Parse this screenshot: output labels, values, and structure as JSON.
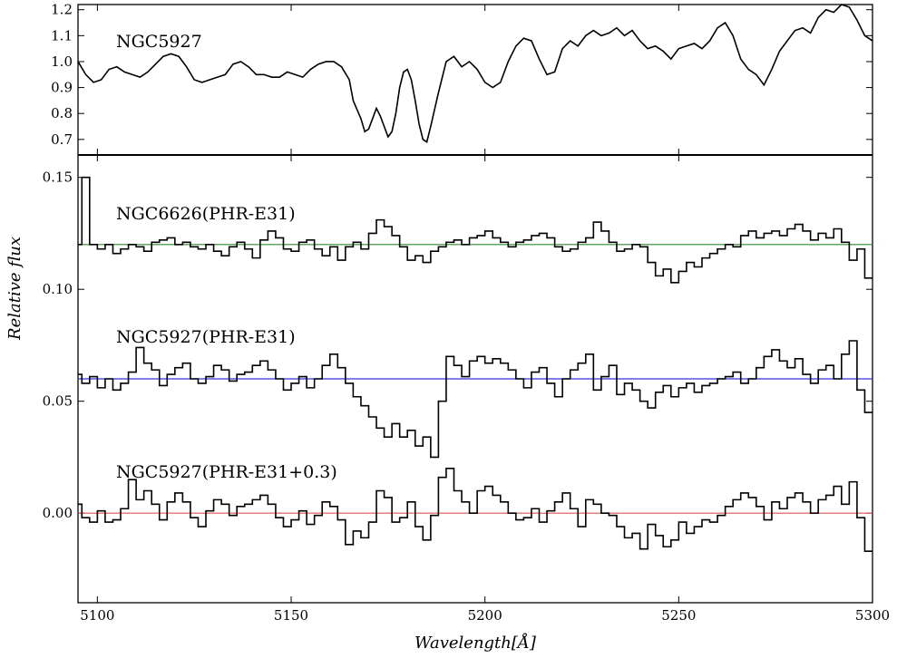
{
  "chart_data": [
    {
      "type": "line",
      "panel": "top",
      "label": "NGC5927",
      "xlim": [
        5095,
        5300
      ],
      "ylim": [
        0.64,
        1.22
      ],
      "yticks": [
        0.7,
        0.8,
        0.9,
        1.0,
        1.1,
        1.2
      ],
      "ytick_labels": [
        "0.7",
        "0.8",
        "0.9",
        "1.0",
        "1.1",
        "1.2"
      ],
      "series": [
        {
          "color": "#000000",
          "x": [
            5095,
            5097,
            5099,
            5101,
            5103,
            5105,
            5107,
            5109,
            5111,
            5113,
            5115,
            5117,
            5119,
            5121,
            5123,
            5125,
            5127,
            5129,
            5131,
            5133,
            5135,
            5137,
            5139,
            5141,
            5143,
            5145,
            5147,
            5149,
            5151,
            5153,
            5155,
            5157,
            5159,
            5161,
            5163,
            5165,
            5166,
            5168,
            5169,
            5170,
            5171,
            5172,
            5173,
            5174,
            5175,
            5176,
            5177,
            5178,
            5179,
            5180,
            5181,
            5182,
            5183,
            5184,
            5185,
            5186,
            5188,
            5190,
            5192,
            5194,
            5196,
            5198,
            5200,
            5202,
            5204,
            5206,
            5208,
            5210,
            5212,
            5214,
            5216,
            5218,
            5220,
            5222,
            5224,
            5226,
            5228,
            5230,
            5232,
            5234,
            5236,
            5238,
            5240,
            5242,
            5244,
            5246,
            5248,
            5250,
            5252,
            5254,
            5256,
            5258,
            5260,
            5262,
            5264,
            5266,
            5268,
            5270,
            5272,
            5274,
            5276,
            5278,
            5280,
            5282,
            5284,
            5286,
            5288,
            5290,
            5292,
            5294,
            5296,
            5298,
            5300
          ],
          "y": [
            1.0,
            0.95,
            0.92,
            0.93,
            0.97,
            0.98,
            0.96,
            0.95,
            0.94,
            0.96,
            0.99,
            1.02,
            1.03,
            1.02,
            0.98,
            0.93,
            0.92,
            0.93,
            0.94,
            0.95,
            0.99,
            1.0,
            0.98,
            0.95,
            0.95,
            0.94,
            0.94,
            0.96,
            0.95,
            0.94,
            0.97,
            0.99,
            1.0,
            1.0,
            0.98,
            0.93,
            0.85,
            0.78,
            0.73,
            0.74,
            0.78,
            0.82,
            0.79,
            0.75,
            0.71,
            0.73,
            0.8,
            0.9,
            0.96,
            0.97,
            0.93,
            0.85,
            0.76,
            0.7,
            0.69,
            0.75,
            0.88,
            1.0,
            1.02,
            0.98,
            1.0,
            0.97,
            0.92,
            0.9,
            0.92,
            1.0,
            1.06,
            1.09,
            1.08,
            1.01,
            0.95,
            0.96,
            1.05,
            1.08,
            1.06,
            1.1,
            1.12,
            1.1,
            1.11,
            1.13,
            1.1,
            1.12,
            1.08,
            1.05,
            1.06,
            1.04,
            1.01,
            1.05,
            1.06,
            1.07,
            1.05,
            1.08,
            1.13,
            1.15,
            1.1,
            1.01,
            0.97,
            0.95,
            0.91,
            0.97,
            1.04,
            1.08,
            1.12,
            1.13,
            1.11,
            1.17,
            1.2,
            1.19,
            1.22,
            1.21,
            1.16,
            1.1,
            1.08
          ]
        }
      ]
    },
    {
      "type": "line",
      "panel": "bottom",
      "xlim": [
        5095,
        5300
      ],
      "ylim": [
        -0.04,
        0.16
      ],
      "xticks": [
        5100,
        5150,
        5200,
        5250,
        5300
      ],
      "xtick_labels": [
        "5100",
        "5150",
        "5200",
        "5250",
        "5300"
      ],
      "yticks": [
        0.0,
        0.05,
        0.1,
        0.15
      ],
      "ytick_labels": [
        "0.00",
        "0.05",
        "0.10",
        "0.15"
      ],
      "xlabel": "Wavelength[Å]",
      "ylabel": "Relative flux",
      "annotations": [
        "NGC6626(PHR-E31)",
        "NGC5927(PHR-E31)",
        "NGC5927(PHR-E31+0.3)"
      ],
      "baselines": [
        {
          "y": 0.12,
          "color": "#2e8b2e"
        },
        {
          "y": 0.06,
          "color": "#3333dd"
        },
        {
          "y": 0.0,
          "color": "#e05555"
        }
      ],
      "series": [
        {
          "name": "NGC6626(PHR-E31)",
          "step": true,
          "color": "#000000",
          "x": [
            5095,
            5097,
            5099,
            5101,
            5103,
            5105,
            5107,
            5109,
            5111,
            5113,
            5115,
            5117,
            5119,
            5121,
            5123,
            5125,
            5127,
            5129,
            5131,
            5133,
            5135,
            5137,
            5139,
            5141,
            5143,
            5145,
            5147,
            5149,
            5151,
            5153,
            5155,
            5157,
            5159,
            5161,
            5163,
            5165,
            5167,
            5169,
            5171,
            5173,
            5175,
            5177,
            5179,
            5181,
            5183,
            5185,
            5187,
            5189,
            5191,
            5193,
            5195,
            5197,
            5199,
            5201,
            5203,
            5205,
            5207,
            5209,
            5211,
            5213,
            5215,
            5217,
            5219,
            5221,
            5223,
            5225,
            5227,
            5229,
            5231,
            5233,
            5235,
            5237,
            5239,
            5241,
            5243,
            5245,
            5247,
            5249,
            5251,
            5253,
            5255,
            5257,
            5259,
            5261,
            5263,
            5265,
            5267,
            5269,
            5271,
            5273,
            5275,
            5277,
            5279,
            5281,
            5283,
            5285,
            5287,
            5289,
            5291,
            5293,
            5295,
            5297,
            5299
          ],
          "y": [
            0.12,
            0.15,
            0.12,
            0.118,
            0.12,
            0.116,
            0.118,
            0.12,
            0.119,
            0.117,
            0.121,
            0.122,
            0.123,
            0.12,
            0.121,
            0.119,
            0.118,
            0.12,
            0.117,
            0.115,
            0.119,
            0.121,
            0.118,
            0.114,
            0.122,
            0.126,
            0.123,
            0.118,
            0.117,
            0.121,
            0.122,
            0.118,
            0.115,
            0.119,
            0.113,
            0.119,
            0.121,
            0.118,
            0.125,
            0.131,
            0.128,
            0.124,
            0.119,
            0.113,
            0.115,
            0.112,
            0.117,
            0.119,
            0.121,
            0.122,
            0.12,
            0.123,
            0.124,
            0.126,
            0.123,
            0.121,
            0.119,
            0.121,
            0.122,
            0.124,
            0.125,
            0.123,
            0.119,
            0.117,
            0.118,
            0.121,
            0.123,
            0.13,
            0.126,
            0.121,
            0.117,
            0.118,
            0.12,
            0.119,
            0.112,
            0.106,
            0.109,
            0.103,
            0.108,
            0.112,
            0.11,
            0.114,
            0.116,
            0.118,
            0.12,
            0.119,
            0.124,
            0.126,
            0.123,
            0.125,
            0.126,
            0.124,
            0.127,
            0.129,
            0.126,
            0.122,
            0.125,
            0.123,
            0.127,
            0.121,
            0.113,
            0.118,
            0.105
          ]
        },
        {
          "name": "NGC5927(PHR-E31)",
          "step": true,
          "color": "#000000",
          "x": [
            5095,
            5097,
            5099,
            5101,
            5103,
            5105,
            5107,
            5109,
            5111,
            5113,
            5115,
            5117,
            5119,
            5121,
            5123,
            5125,
            5127,
            5129,
            5131,
            5133,
            5135,
            5137,
            5139,
            5141,
            5143,
            5145,
            5147,
            5149,
            5151,
            5153,
            5155,
            5157,
            5159,
            5161,
            5163,
            5165,
            5167,
            5169,
            5171,
            5173,
            5175,
            5177,
            5179,
            5181,
            5183,
            5185,
            5187,
            5189,
            5191,
            5193,
            5195,
            5197,
            5199,
            5201,
            5203,
            5205,
            5207,
            5209,
            5211,
            5213,
            5215,
            5217,
            5219,
            5221,
            5223,
            5225,
            5227,
            5229,
            5231,
            5233,
            5235,
            5237,
            5239,
            5241,
            5243,
            5245,
            5247,
            5249,
            5251,
            5253,
            5255,
            5257,
            5259,
            5261,
            5263,
            5265,
            5267,
            5269,
            5271,
            5273,
            5275,
            5277,
            5279,
            5281,
            5283,
            5285,
            5287,
            5289,
            5291,
            5293,
            5295,
            5297,
            5299
          ],
          "y": [
            0.062,
            0.058,
            0.061,
            0.056,
            0.06,
            0.055,
            0.058,
            0.063,
            0.074,
            0.067,
            0.064,
            0.057,
            0.062,
            0.065,
            0.067,
            0.06,
            0.058,
            0.061,
            0.066,
            0.064,
            0.059,
            0.062,
            0.063,
            0.066,
            0.068,
            0.064,
            0.06,
            0.055,
            0.058,
            0.061,
            0.056,
            0.06,
            0.066,
            0.071,
            0.065,
            0.058,
            0.052,
            0.048,
            0.043,
            0.038,
            0.034,
            0.04,
            0.034,
            0.037,
            0.03,
            0.034,
            0.025,
            0.05,
            0.07,
            0.066,
            0.061,
            0.068,
            0.07,
            0.067,
            0.069,
            0.067,
            0.064,
            0.06,
            0.056,
            0.063,
            0.065,
            0.058,
            0.052,
            0.06,
            0.064,
            0.067,
            0.071,
            0.055,
            0.061,
            0.066,
            0.053,
            0.058,
            0.055,
            0.05,
            0.047,
            0.054,
            0.057,
            0.052,
            0.056,
            0.058,
            0.054,
            0.057,
            0.058,
            0.06,
            0.061,
            0.063,
            0.058,
            0.06,
            0.065,
            0.07,
            0.073,
            0.068,
            0.065,
            0.069,
            0.062,
            0.058,
            0.064,
            0.066,
            0.06,
            0.071,
            0.077,
            0.055,
            0.045
          ]
        },
        {
          "name": "NGC5927(PHR-E31+0.3)",
          "step": true,
          "color": "#000000",
          "x": [
            5095,
            5097,
            5099,
            5101,
            5103,
            5105,
            5107,
            5109,
            5111,
            5113,
            5115,
            5117,
            5119,
            5121,
            5123,
            5125,
            5127,
            5129,
            5131,
            5133,
            5135,
            5137,
            5139,
            5141,
            5143,
            5145,
            5147,
            5149,
            5151,
            5153,
            5155,
            5157,
            5159,
            5161,
            5163,
            5165,
            5167,
            5169,
            5171,
            5173,
            5175,
            5177,
            5179,
            5181,
            5183,
            5185,
            5187,
            5189,
            5191,
            5193,
            5195,
            5197,
            5199,
            5201,
            5203,
            5205,
            5207,
            5209,
            5211,
            5213,
            5215,
            5217,
            5219,
            5221,
            5223,
            5225,
            5227,
            5229,
            5231,
            5233,
            5235,
            5237,
            5239,
            5241,
            5243,
            5245,
            5247,
            5249,
            5251,
            5253,
            5255,
            5257,
            5259,
            5261,
            5263,
            5265,
            5267,
            5269,
            5271,
            5273,
            5275,
            5277,
            5279,
            5281,
            5283,
            5285,
            5287,
            5289,
            5291,
            5293,
            5295,
            5297,
            5299
          ],
          "y": [
            0.004,
            -0.002,
            -0.004,
            0.001,
            -0.004,
            -0.003,
            0.002,
            0.015,
            0.006,
            0.01,
            0.004,
            -0.003,
            0.005,
            0.009,
            0.005,
            -0.002,
            -0.006,
            0.001,
            0.006,
            0.004,
            -0.001,
            0.003,
            0.004,
            0.006,
            0.008,
            0.004,
            -0.002,
            -0.006,
            -0.003,
            0.001,
            -0.005,
            -0.001,
            0.005,
            0.003,
            -0.003,
            -0.014,
            -0.008,
            -0.011,
            -0.004,
            0.01,
            0.007,
            -0.004,
            -0.002,
            0.005,
            -0.006,
            -0.012,
            -0.001,
            0.016,
            0.02,
            0.01,
            0.005,
            0.0,
            0.01,
            0.012,
            0.008,
            0.005,
            0.0,
            -0.003,
            -0.002,
            0.002,
            -0.004,
            0.001,
            0.005,
            0.009,
            0.002,
            -0.006,
            0.006,
            0.004,
            0.0,
            -0.001,
            -0.006,
            -0.011,
            -0.009,
            -0.016,
            -0.005,
            -0.01,
            -0.015,
            -0.012,
            -0.004,
            -0.009,
            -0.006,
            -0.003,
            -0.004,
            -0.001,
            0.003,
            0.006,
            0.009,
            0.007,
            0.003,
            -0.003,
            0.005,
            0.002,
            0.007,
            0.009,
            0.005,
            0.0,
            0.006,
            0.008,
            0.012,
            0.004,
            0.014,
            -0.002,
            -0.017
          ]
        }
      ]
    }
  ]
}
